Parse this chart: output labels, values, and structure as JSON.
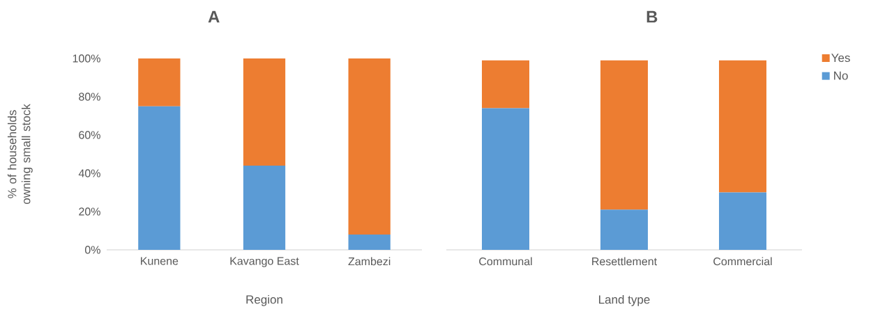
{
  "chart_data": [
    {
      "type": "bar",
      "title": "A",
      "xlabel": "Region",
      "ylabel": "% of households owning small stock",
      "stacked": true,
      "categories": [
        "Kunene",
        "Kavango East",
        "Zambezi"
      ],
      "series": [
        {
          "color": "#5b9bd5",
          "values": [
            75,
            44,
            8
          ]
        },
        {
          "color": "#ed7d31",
          "values": [
            25,
            56,
            92
          ]
        }
      ],
      "ylim": [
        0,
        100
      ],
      "yticks": [
        {
          "value": 0,
          "label": "0%"
        },
        {
          "value": 20,
          "label": "20%"
        },
        {
          "value": 40,
          "label": "40%"
        },
        {
          "value": 60,
          "label": "60%"
        },
        {
          "value": 80,
          "label": "80%"
        },
        {
          "value": 100,
          "label": "100%"
        }
      ]
    },
    {
      "type": "bar",
      "title": "B",
      "xlabel": "Land type",
      "stacked": true,
      "categories": [
        "Communal",
        "Resettlement",
        "Commercial"
      ],
      "series": [
        {
          "name": "No",
          "color": "#5b9bd5",
          "values": [
            74,
            21,
            30
          ]
        },
        {
          "name": "Yes",
          "color": "#ed7d31",
          "values": [
            25,
            78,
            69
          ]
        }
      ],
      "ylim": [
        0,
        100
      ],
      "tick_labels": "x",
      "legend": "right"
    }
  ]
}
